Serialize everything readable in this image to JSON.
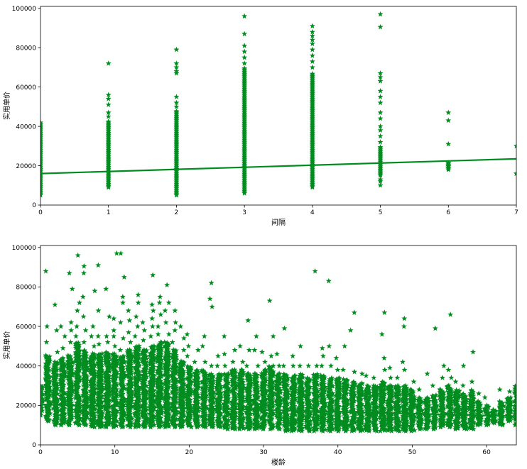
{
  "chart_data": [
    {
      "type": "scatter",
      "title": "",
      "xlabel": "间隔",
      "ylabel": "实用单价",
      "xlim": [
        0,
        7
      ],
      "ylim": [
        0,
        101000
      ],
      "x_ticks": [
        0,
        1,
        2,
        3,
        4,
        5,
        6,
        7
      ],
      "y_ticks": [
        0,
        20000,
        40000,
        60000,
        80000,
        100000
      ],
      "grid": false,
      "marker": "star",
      "color": "#008c1f",
      "columns": [
        {
          "x": 0,
          "dense_min": 5000,
          "dense_max": 42000,
          "outliers": []
        },
        {
          "x": 1,
          "dense_min": 9000,
          "dense_max": 43000,
          "outliers": [
            45000,
            47000,
            51000,
            54000,
            56000,
            72000
          ]
        },
        {
          "x": 2,
          "dense_min": 5000,
          "dense_max": 48000,
          "outliers": [
            50000,
            52000,
            55000,
            67000,
            68000,
            70000,
            72000,
            79000
          ]
        },
        {
          "x": 3,
          "dense_min": 6000,
          "dense_max": 70000,
          "outliers": [
            72000,
            75000,
            78000,
            81000,
            87000,
            96000
          ]
        },
        {
          "x": 4,
          "dense_min": 9000,
          "dense_max": 67000,
          "outliers": [
            70000,
            73000,
            76000,
            79000,
            82000,
            84000,
            86000,
            88000,
            91000
          ]
        },
        {
          "x": 5,
          "dense_min": 15000,
          "dense_max": 30000,
          "outliers": [
            10000,
            12000,
            13000,
            32000,
            35000,
            38000,
            40000,
            44000,
            47000,
            52000,
            55000,
            58000,
            63000,
            65000,
            67000,
            90500,
            97000
          ]
        },
        {
          "x": 6,
          "dense_min": 18000,
          "dense_max": 22000,
          "outliers": [
            18500,
            20000,
            21500,
            31000,
            43000,
            47000
          ]
        },
        {
          "x": 7,
          "dense_min": 16000,
          "dense_max": 16000,
          "outliers": [
            16000,
            30000
          ]
        }
      ],
      "regression": {
        "x": [
          0,
          7
        ],
        "y": [
          16000,
          23500
        ]
      }
    },
    {
      "type": "scatter",
      "title": "",
      "xlabel": "楼龄",
      "ylabel": "实用单价",
      "xlim": [
        0,
        64
      ],
      "ylim": [
        0,
        101000
      ],
      "x_ticks": [
        0,
        10,
        20,
        30,
        40,
        50,
        60
      ],
      "y_ticks": [
        0,
        20000,
        40000,
        60000,
        80000,
        100000
      ],
      "grid": false,
      "marker": "star",
      "color": "#008c1f",
      "columns": [
        {
          "x": 0,
          "dense_min": 15000,
          "dense_max": 30000,
          "outliers": []
        },
        {
          "x": 1,
          "dense_min": 12000,
          "dense_max": 45000,
          "outliers": [
            52000,
            60000,
            88000
          ]
        },
        {
          "x": 2,
          "dense_min": 10000,
          "dense_max": 42000,
          "outliers": [
            47000,
            58000,
            71000
          ]
        },
        {
          "x": 3,
          "dense_min": 10000,
          "dense_max": 44000,
          "outliers": [
            49000,
            55000,
            60000
          ]
        },
        {
          "x": 4,
          "dense_min": 10000,
          "dense_max": 45000,
          "outliers": [
            52000,
            58000,
            62000,
            79000,
            87000
          ]
        },
        {
          "x": 5,
          "dense_min": 10000,
          "dense_max": 52000,
          "outliers": [
            55000,
            60000,
            68000,
            72000,
            96000
          ]
        },
        {
          "x": 6,
          "dense_min": 10000,
          "dense_max": 48000,
          "outliers": [
            52000,
            58000,
            65000,
            75000,
            87000,
            90500
          ]
        },
        {
          "x": 7,
          "dense_min": 9000,
          "dense_max": 46000,
          "outliers": [
            50000,
            55000,
            60000,
            78000
          ]
        },
        {
          "x": 8,
          "dense_min": 9000,
          "dense_max": 46000,
          "outliers": [
            51000,
            55000,
            68000,
            91000
          ]
        },
        {
          "x": 9,
          "dense_min": 9000,
          "dense_max": 47000,
          "outliers": [
            52000,
            55000,
            65000,
            79000
          ]
        },
        {
          "x": 10,
          "dense_min": 9000,
          "dense_max": 46000,
          "outliers": [
            50000,
            55000,
            58000,
            64000,
            97000
          ]
        },
        {
          "x": 11,
          "dense_min": 9000,
          "dense_max": 45000,
          "outliers": [
            48000,
            54000,
            62000,
            72000,
            75000,
            85000,
            97000
          ]
        },
        {
          "x": 12,
          "dense_min": 9000,
          "dense_max": 48000,
          "outliers": [
            52000,
            57000,
            63000,
            68000
          ]
        },
        {
          "x": 13,
          "dense_min": 9000,
          "dense_max": 50000,
          "outliers": [
            55000,
            60000,
            65000,
            72000,
            76000
          ]
        },
        {
          "x": 14,
          "dense_min": 9000,
          "dense_max": 48000,
          "outliers": [
            53000,
            58000,
            62000
          ]
        },
        {
          "x": 15,
          "dense_min": 9000,
          "dense_max": 50000,
          "outliers": [
            55000,
            60000,
            64000,
            68000,
            71000,
            86000
          ]
        },
        {
          "x": 16,
          "dense_min": 9000,
          "dense_max": 52000,
          "outliers": [
            56000,
            60000,
            66000,
            72000,
            75000
          ]
        },
        {
          "x": 17,
          "dense_min": 9000,
          "dense_max": 52000,
          "outliers": [
            56000,
            62000,
            68000,
            72000,
            81000
          ]
        },
        {
          "x": 18,
          "dense_min": 9000,
          "dense_max": 48000,
          "outliers": [
            52000,
            58000,
            62000,
            68000
          ]
        },
        {
          "x": 19,
          "dense_min": 9000,
          "dense_max": 42000,
          "outliers": [
            48000,
            54000,
            60000
          ]
        },
        {
          "x": 20,
          "dense_min": 9000,
          "dense_max": 40000,
          "outliers": [
            45000,
            50000,
            56000
          ]
        },
        {
          "x": 21,
          "dense_min": 9000,
          "dense_max": 38000,
          "outliers": [
            42000,
            48000
          ]
        },
        {
          "x": 22,
          "dense_min": 9000,
          "dense_max": 38000,
          "outliers": [
            42000,
            50000,
            55000
          ]
        },
        {
          "x": 23,
          "dense_min": 9000,
          "dense_max": 36000,
          "outliers": [
            40000,
            70000,
            74000,
            82000
          ]
        },
        {
          "x": 24,
          "dense_min": 9000,
          "dense_max": 36000,
          "outliers": [
            40000,
            45000
          ]
        },
        {
          "x": 25,
          "dense_min": 8000,
          "dense_max": 36000,
          "outliers": [
            40000,
            46000,
            55000
          ]
        },
        {
          "x": 26,
          "dense_min": 8000,
          "dense_max": 38000,
          "outliers": [
            42000,
            48000
          ]
        },
        {
          "x": 27,
          "dense_min": 8000,
          "dense_max": 38000,
          "outliers": [
            42000,
            50000
          ]
        },
        {
          "x": 28,
          "dense_min": 8000,
          "dense_max": 36000,
          "outliers": [
            40000,
            48000,
            63000
          ]
        },
        {
          "x": 29,
          "dense_min": 8000,
          "dense_max": 36000,
          "outliers": [
            40000,
            48000,
            55000
          ]
        },
        {
          "x": 30,
          "dense_min": 8000,
          "dense_max": 38000,
          "outliers": [
            42000,
            47000
          ]
        },
        {
          "x": 31,
          "dense_min": 8000,
          "dense_max": 40000,
          "outliers": [
            45000,
            55000,
            73000
          ]
        },
        {
          "x": 32,
          "dense_min": 8000,
          "dense_max": 36000,
          "outliers": [
            40000,
            46000
          ]
        },
        {
          "x": 33,
          "dense_min": 7000,
          "dense_max": 36000,
          "outliers": [
            40000,
            59000
          ]
        },
        {
          "x": 34,
          "dense_min": 7000,
          "dense_max": 35000,
          "outliers": [
            40000,
            45000
          ]
        },
        {
          "x": 35,
          "dense_min": 7000,
          "dense_max": 36000,
          "outliers": [
            40000,
            50000
          ]
        },
        {
          "x": 36,
          "dense_min": 7000,
          "dense_max": 34000,
          "outliers": [
            40000
          ]
        },
        {
          "x": 37,
          "dense_min": 7000,
          "dense_max": 36000,
          "outliers": [
            40000,
            88000
          ]
        },
        {
          "x": 38,
          "dense_min": 7000,
          "dense_max": 35000,
          "outliers": [
            40000,
            45000,
            49000
          ]
        },
        {
          "x": 39,
          "dense_min": 7000,
          "dense_max": 34000,
          "outliers": [
            40000,
            50000,
            83000
          ]
        },
        {
          "x": 40,
          "dense_min": 7000,
          "dense_max": 34000,
          "outliers": [
            38000,
            44000
          ]
        },
        {
          "x": 41,
          "dense_min": 7000,
          "dense_max": 33000,
          "outliers": [
            38000,
            50000
          ]
        },
        {
          "x": 42,
          "dense_min": 7000,
          "dense_max": 32000,
          "outliers": [
            37000,
            58000,
            67000
          ]
        },
        {
          "x": 43,
          "dense_min": 7000,
          "dense_max": 31000,
          "outliers": [
            36000
          ]
        },
        {
          "x": 44,
          "dense_min": 7000,
          "dense_max": 30000,
          "outliers": [
            35000
          ]
        },
        {
          "x": 45,
          "dense_min": 7000,
          "dense_max": 30000,
          "outliers": [
            34000
          ]
        },
        {
          "x": 46,
          "dense_min": 7000,
          "dense_max": 32000,
          "outliers": [
            38000,
            44000,
            56000,
            67000
          ]
        },
        {
          "x": 47,
          "dense_min": 7000,
          "dense_max": 30000,
          "outliers": [
            34000,
            39000
          ]
        },
        {
          "x": 48,
          "dense_min": 7000,
          "dense_max": 30000,
          "outliers": [
            34000
          ]
        },
        {
          "x": 49,
          "dense_min": 7000,
          "dense_max": 30000,
          "outliers": [
            38000,
            42000,
            60000,
            64000
          ]
        },
        {
          "x": 50,
          "dense_min": 7000,
          "dense_max": 28000,
          "outliers": [
            32000
          ]
        },
        {
          "x": 51,
          "dense_min": 8000,
          "dense_max": 24000,
          "outliers": [
            28000
          ]
        },
        {
          "x": 52,
          "dense_min": 8000,
          "dense_max": 24000,
          "outliers": [
            36000
          ]
        },
        {
          "x": 53,
          "dense_min": 8000,
          "dense_max": 25000,
          "outliers": [
            30000,
            59000
          ]
        },
        {
          "x": 54,
          "dense_min": 9000,
          "dense_max": 28000,
          "outliers": [
            34000,
            40000
          ]
        },
        {
          "x": 55,
          "dense_min": 9000,
          "dense_max": 30000,
          "outliers": [
            34000,
            38000,
            66000
          ]
        },
        {
          "x": 56,
          "dense_min": 8000,
          "dense_max": 28000,
          "outliers": [
            32000
          ]
        },
        {
          "x": 57,
          "dense_min": 8000,
          "dense_max": 26000,
          "outliers": [
            30000,
            40000
          ]
        },
        {
          "x": 58,
          "dense_min": 8000,
          "dense_max": 28000,
          "outliers": [
            32000,
            47000
          ]
        },
        {
          "x": 59,
          "dense_min": 10000,
          "dense_max": 22000,
          "outliers": [
            26000
          ]
        },
        {
          "x": 60,
          "dense_min": 10000,
          "dense_max": 20000,
          "outliers": [
            24000
          ]
        },
        {
          "x": 61,
          "dense_min": 11000,
          "dense_max": 18000,
          "outliers": []
        },
        {
          "x": 62,
          "dense_min": 10000,
          "dense_max": 22000,
          "outliers": [
            28000
          ]
        },
        {
          "x": 63,
          "dense_min": 12000,
          "dense_max": 24000,
          "outliers": [
            27000
          ]
        },
        {
          "x": 64,
          "dense_min": 10000,
          "dense_max": 30000,
          "outliers": []
        }
      ],
      "regression": {
        "x": [
          0,
          64
        ],
        "y": [
          20500,
          14500
        ]
      }
    }
  ]
}
